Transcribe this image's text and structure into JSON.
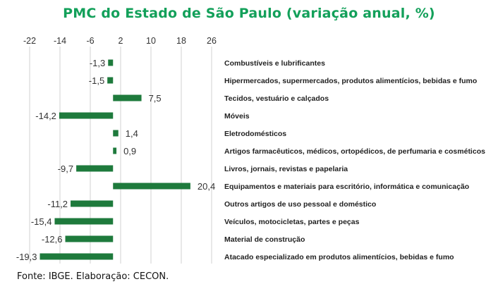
{
  "title": "PMC do Estado de São Paulo (variação anual, %)",
  "source": "Fonte: IBGE. Elaboração: CECON.",
  "colors": {
    "bar": "#1e7a3c",
    "title": "#13a05a",
    "grid": "#d0d0d0"
  },
  "chart_data": {
    "type": "bar",
    "orientation": "horizontal",
    "title": "PMC do Estado de São Paulo (variação anual, %)",
    "xlabel": "",
    "ylabel": "",
    "xlim": [
      -22,
      26
    ],
    "ticks": [
      -22,
      -14,
      -6,
      2,
      10,
      18,
      26
    ],
    "tick_labels": [
      "-22",
      "-14",
      "-6",
      "2",
      "10",
      "18",
      "26"
    ],
    "grid": true,
    "categories": [
      "Combustíveis e lubrificantes",
      "Hipermercados, supermercados, produtos alimentícios, bebidas e fumo",
      "Tecidos, vestuário e calçados",
      "Móveis",
      "Eletrodomésticos",
      "Artigos farmacêuticos, médicos, ortopédicos, de perfumaria e cosméticos",
      "Livros, jornais, revistas e papelaria",
      "Equipamentos e materiais para escritório, informática e comunicação",
      "Outros artigos de uso pessoal e doméstico",
      "Veículos, motocicletas, partes e peças",
      "Material de construção",
      "Atacado especializado em produtos alimentícios, bebidas e fumo"
    ],
    "values": [
      -1.3,
      -1.5,
      7.5,
      -14.2,
      1.4,
      0.9,
      -9.7,
      20.4,
      -11.2,
      -15.4,
      -12.6,
      -19.3
    ],
    "value_labels": [
      "-1,3",
      "-1,5",
      "7,5",
      "-14,2",
      "1,4",
      "0,9",
      "-9,7",
      "20,4",
      "-11,2",
      "-15,4",
      "-12,6",
      "-19,3"
    ]
  }
}
